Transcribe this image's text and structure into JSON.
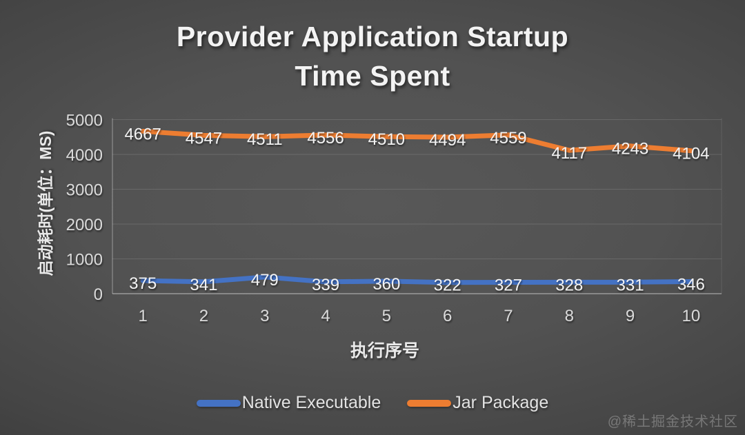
{
  "title": {
    "line1": "Provider Application Startup",
    "line2": "Time Spent"
  },
  "chart_data": {
    "type": "line",
    "x": [
      1,
      2,
      3,
      4,
      5,
      6,
      7,
      8,
      9,
      10
    ],
    "series": [
      {
        "name": "Native Executable",
        "color": "#4472C4",
        "values": [
          375,
          341,
          479,
          339,
          360,
          322,
          327,
          328,
          331,
          346
        ]
      },
      {
        "name": "Jar Package",
        "color": "#ED7D31",
        "values": [
          4667,
          4547,
          4511,
          4556,
          4510,
          4494,
          4559,
          4117,
          4243,
          4104
        ]
      }
    ],
    "xlabel": "执行序号",
    "ylabel": "启动耗时(单位：MS)",
    "ylim": [
      0,
      5000
    ],
    "yticks": [
      0,
      1000,
      2000,
      3000,
      4000,
      5000
    ],
    "grid": true,
    "legend_position": "bottom",
    "data_labels": true
  },
  "watermark": "@稀土掘金技术社区",
  "colors": {
    "tick_text": "#d9d9d9",
    "data_label_text": "#f2f2f2",
    "gridline": "rgba(255,255,255,0.13)",
    "axis_line": "rgba(255,255,255,0.42)",
    "plot_right_border": "rgba(255,255,255,0.10)"
  }
}
